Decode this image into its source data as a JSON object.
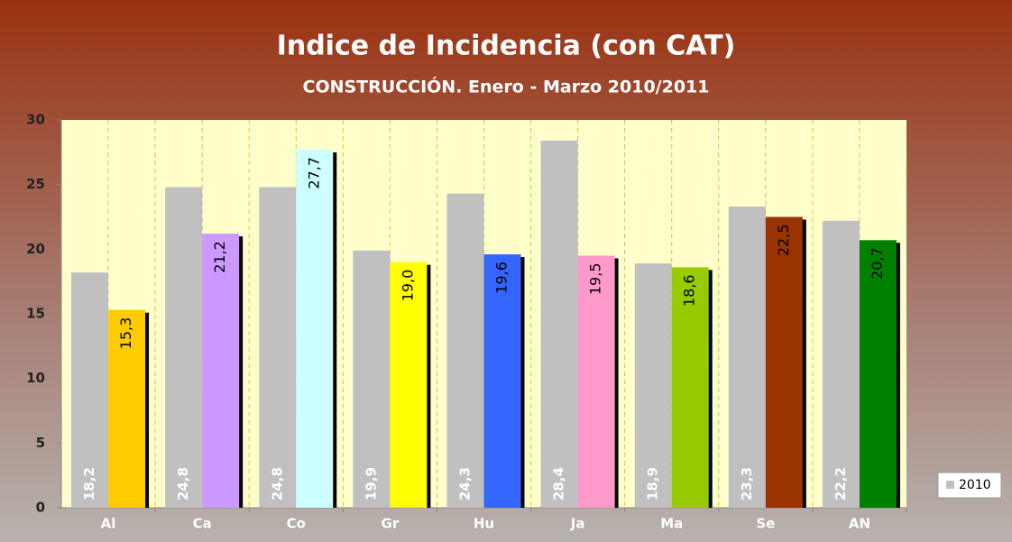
{
  "chart_data": {
    "type": "bar",
    "title": "Indice de Incidencia (con CAT)",
    "subtitle": "CONSTRUCCIÓN. Enero - Marzo 2010/2011",
    "categories": [
      "Al",
      "Ca",
      "Co",
      "Gr",
      "Hu",
      "Ja",
      "Ma",
      "Se",
      "AN"
    ],
    "series": [
      {
        "name": "2010",
        "color": "#c0c0c0",
        "values": [
          18.2,
          24.8,
          24.8,
          19.9,
          24.3,
          28.4,
          18.9,
          23.3,
          22.2
        ],
        "value_labels": [
          "18,2",
          "24,8",
          "24,8",
          "19,9",
          "24,3",
          "28,4",
          "18,9",
          "23,3",
          "22,2"
        ]
      },
      {
        "colors": [
          "#ffcc00",
          "#cc99ff",
          "#ccffff",
          "#ffff00",
          "#3366ff",
          "#ff99cc",
          "#99cc00",
          "#993300",
          "#008000"
        ],
        "values": [
          15.3,
          21.2,
          27.7,
          19.0,
          19.6,
          19.5,
          18.6,
          22.5,
          20.7
        ],
        "value_labels": [
          "15,3",
          "21,2",
          "27,7",
          "19,0",
          "19,6",
          "19,5",
          "18,6",
          "22,5",
          "20,7"
        ]
      }
    ],
    "ylim": [
      0,
      30
    ],
    "yticks": [
      0,
      5,
      10,
      15,
      20,
      25,
      30
    ]
  }
}
